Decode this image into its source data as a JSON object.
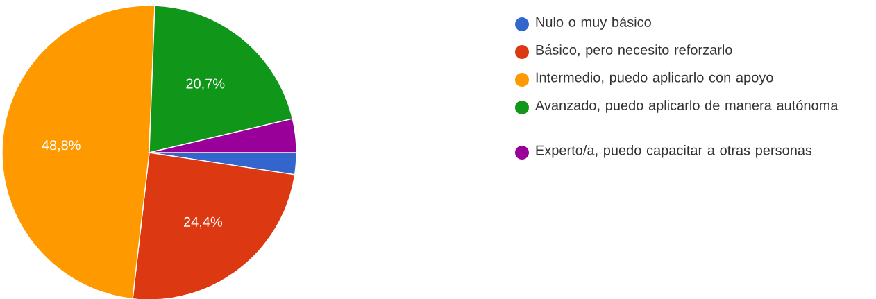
{
  "chart_data": {
    "type": "pie",
    "categories": [
      "Nulo o muy básico",
      "Básico, pero necesito reforzarlo",
      "Intermedio, puedo aplicarlo con apoyo",
      "Avanzado, puedo aplicarlo de manera autónoma",
      "Experto/a, puedo capacitar a otras personas"
    ],
    "values": [
      2.4,
      24.4,
      48.8,
      20.7,
      3.7
    ],
    "colors": [
      "#3366cc",
      "#dc3912",
      "#ff9900",
      "#109618",
      "#990099"
    ],
    "value_labels": [
      null,
      "24,4%",
      "48,8%",
      "20,7%",
      null
    ],
    "legend": "right"
  }
}
